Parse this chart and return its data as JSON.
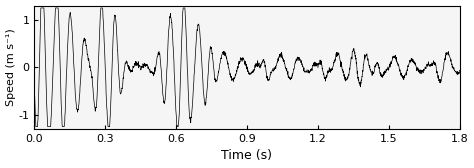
{
  "title": "",
  "xlabel": "Time (s)",
  "ylabel": "Speed (m s⁻¹)",
  "xlim": [
    0.0,
    1.8
  ],
  "ylim": [
    -1.3,
    1.3
  ],
  "xticks": [
    0.0,
    0.3,
    0.6,
    0.9,
    1.2,
    1.5,
    1.8
  ],
  "yticks": [
    -1,
    0,
    1
  ],
  "line_color": "black",
  "line_width": 0.5,
  "background_color": "#f0f0f0",
  "sample_rate": 1000,
  "duration": 1.8
}
